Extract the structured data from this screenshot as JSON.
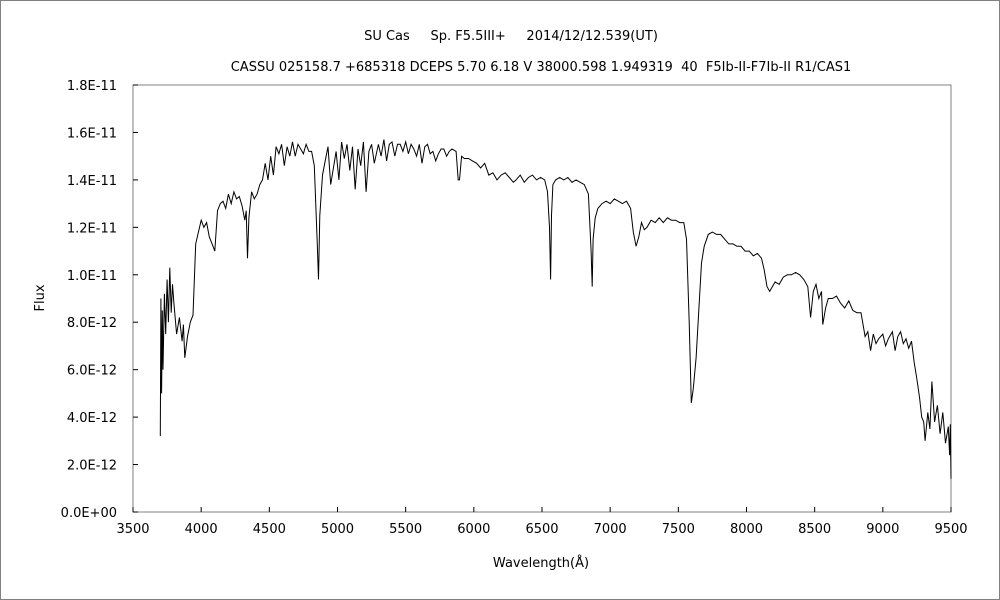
{
  "chart_data": {
    "type": "line",
    "title": "SU Cas     Sp. F5.5III+     2014/12/12.539(UT)",
    "subtitle": "CASSU 025158.7 +685318 DCEPS 5.70 6.18 V 38000.598 1.949319  40  F5Ib-II-F7Ib-II R1/CAS1",
    "xlabel": "Wavelength(Å)",
    "ylabel": "Flux",
    "xlim": [
      3500,
      9500
    ],
    "ylim": [
      0,
      1.8e-11
    ],
    "xticks": [
      3500,
      4000,
      4500,
      5000,
      5500,
      6000,
      6500,
      7000,
      7500,
      8000,
      8500,
      9000,
      9500
    ],
    "xtick_labels": [
      "3500",
      "4000",
      "4500",
      "5000",
      "5500",
      "6000",
      "6500",
      "7000",
      "7500",
      "8000",
      "8500",
      "9000",
      "9500"
    ],
    "yticks": [
      0,
      2e-12,
      4e-12,
      6e-12,
      8e-12,
      1e-11,
      1.2e-11,
      1.4e-11,
      1.6e-11,
      1.8e-11
    ],
    "ytick_labels": [
      "0.0E+00",
      "2.0E-12",
      "4.0E-12",
      "6.0E-12",
      "8.0E-12",
      "1.0E-11",
      "1.2E-11",
      "1.4E-11",
      "1.6E-11",
      "1.8E-11"
    ],
    "grid": false,
    "line_color": "#000000",
    "series": [
      {
        "x": [
          3700,
          3705,
          3710,
          3715,
          3720,
          3730,
          3740,
          3750,
          3760,
          3770,
          3780,
          3790,
          3800,
          3820,
          3840,
          3860,
          3870,
          3880,
          3900,
          3920,
          3940,
          3960,
          3980,
          4000,
          4020,
          4040,
          4060,
          4080,
          4100,
          4120,
          4140,
          4160,
          4180,
          4200,
          4220,
          4240,
          4260,
          4280,
          4300,
          4320,
          4330,
          4340,
          4350,
          4370,
          4390,
          4410,
          4430,
          4450,
          4470,
          4490,
          4510,
          4530,
          4550,
          4570,
          4590,
          4610,
          4630,
          4650,
          4670,
          4690,
          4710,
          4730,
          4750,
          4770,
          4790,
          4810,
          4830,
          4850,
          4861,
          4870,
          4890,
          4910,
          4930,
          4950,
          4970,
          4990,
          5010,
          5030,
          5050,
          5070,
          5090,
          5110,
          5130,
          5150,
          5170,
          5190,
          5210,
          5230,
          5250,
          5270,
          5300,
          5320,
          5340,
          5360,
          5380,
          5400,
          5420,
          5440,
          5460,
          5480,
          5500,
          5520,
          5540,
          5560,
          5580,
          5600,
          5620,
          5640,
          5660,
          5680,
          5700,
          5720,
          5740,
          5760,
          5780,
          5800,
          5820,
          5840,
          5870,
          5885,
          5895,
          5910,
          5930,
          5960,
          5990,
          6020,
          6050,
          6080,
          6110,
          6140,
          6170,
          6200,
          6230,
          6260,
          6290,
          6310,
          6340,
          6370,
          6400,
          6430,
          6460,
          6490,
          6520,
          6540,
          6555,
          6563,
          6570,
          6580,
          6600,
          6630,
          6660,
          6690,
          6720,
          6750,
          6780,
          6810,
          6840,
          6860,
          6868,
          6875,
          6890,
          6910,
          6940,
          6970,
          7000,
          7030,
          7060,
          7090,
          7120,
          7150,
          7170,
          7190,
          7210,
          7230,
          7250,
          7270,
          7300,
          7330,
          7360,
          7390,
          7420,
          7450,
          7480,
          7510,
          7540,
          7560,
          7580,
          7595,
          7610,
          7630,
          7650,
          7670,
          7690,
          7720,
          7750,
          7780,
          7810,
          7840,
          7870,
          7900,
          7930,
          7960,
          7990,
          8020,
          8050,
          8080,
          8110,
          8130,
          8150,
          8170,
          8190,
          8210,
          8240,
          8270,
          8300,
          8330,
          8360,
          8390,
          8420,
          8450,
          8470,
          8490,
          8510,
          8530,
          8550,
          8560,
          8580,
          8600,
          8630,
          8660,
          8690,
          8720,
          8750,
          8780,
          8810,
          8840,
          8870,
          8890,
          8910,
          8930,
          8950,
          8970,
          9000,
          9020,
          9040,
          9070,
          9090,
          9110,
          9130,
          9150,
          9170,
          9190,
          9210,
          9230,
          9250,
          9270,
          9285,
          9300,
          9310,
          9330,
          9345,
          9360,
          9380,
          9400,
          9420,
          9440,
          9460,
          9480,
          9490,
          9495,
          9500
        ],
        "y": [
          3.2e-12,
          9e-12,
          5e-12,
          8.5e-12,
          6e-12,
          9.2e-12,
          7.5e-12,
          9.8e-12,
          8e-12,
          1.03e-11,
          8.4e-12,
          9.6e-12,
          8.8e-12,
          7.5e-12,
          8.2e-12,
          7.2e-12,
          7.9e-12,
          6.5e-12,
          7.4e-12,
          8e-12,
          8.3e-12,
          1.13e-11,
          1.18e-11,
          1.23e-11,
          1.2e-11,
          1.22e-11,
          1.16e-11,
          1.13e-11,
          1.1e-11,
          1.27e-11,
          1.3e-11,
          1.31e-11,
          1.28e-11,
          1.34e-11,
          1.3e-11,
          1.35e-11,
          1.32e-11,
          1.33e-11,
          1.29e-11,
          1.23e-11,
          1.27e-11,
          1.07e-11,
          1.24e-11,
          1.35e-11,
          1.32e-11,
          1.34e-11,
          1.38e-11,
          1.4e-11,
          1.47e-11,
          1.4e-11,
          1.5e-11,
          1.42e-11,
          1.54e-11,
          1.51e-11,
          1.55e-11,
          1.46e-11,
          1.54e-11,
          1.5e-11,
          1.56e-11,
          1.5e-11,
          1.55e-11,
          1.53e-11,
          1.51e-11,
          1.55e-11,
          1.52e-11,
          1.52e-11,
          1.46e-11,
          1.15e-11,
          9.8e-12,
          1.25e-11,
          1.42e-11,
          1.48e-11,
          1.54e-11,
          1.38e-11,
          1.45e-11,
          1.52e-11,
          1.4e-11,
          1.56e-11,
          1.49e-11,
          1.55e-11,
          1.44e-11,
          1.54e-11,
          1.36e-11,
          1.53e-11,
          1.46e-11,
          1.56e-11,
          1.35e-11,
          1.52e-11,
          1.55e-11,
          1.47e-11,
          1.55e-11,
          1.5e-11,
          1.57e-11,
          1.48e-11,
          1.55e-11,
          1.56e-11,
          1.5e-11,
          1.55e-11,
          1.55e-11,
          1.52e-11,
          1.56e-11,
          1.51e-11,
          1.55e-11,
          1.53e-11,
          1.5e-11,
          1.55e-11,
          1.47e-11,
          1.54e-11,
          1.55e-11,
          1.51e-11,
          1.52e-11,
          1.48e-11,
          1.51e-11,
          1.53e-11,
          1.53e-11,
          1.5e-11,
          1.52e-11,
          1.53e-11,
          1.52e-11,
          1.4e-11,
          1.4e-11,
          1.5e-11,
          1.49e-11,
          1.49e-11,
          1.48e-11,
          1.47e-11,
          1.45e-11,
          1.47e-11,
          1.42e-11,
          1.43e-11,
          1.4e-11,
          1.42e-11,
          1.43e-11,
          1.41e-11,
          1.39e-11,
          1.4e-11,
          1.42e-11,
          1.39e-11,
          1.41e-11,
          1.42e-11,
          1.4e-11,
          1.41e-11,
          1.4e-11,
          1.35e-11,
          1.2e-11,
          9.8e-12,
          1.25e-11,
          1.38e-11,
          1.4e-11,
          1.41e-11,
          1.4e-11,
          1.41e-11,
          1.39e-11,
          1.4e-11,
          1.39e-11,
          1.38e-11,
          1.34e-11,
          1.1e-11,
          9.5e-12,
          1.15e-11,
          1.24e-11,
          1.28e-11,
          1.3e-11,
          1.31e-11,
          1.3e-11,
          1.32e-11,
          1.31e-11,
          1.3e-11,
          1.31e-11,
          1.28e-11,
          1.18e-11,
          1.12e-11,
          1.16e-11,
          1.22e-11,
          1.19e-11,
          1.2e-11,
          1.23e-11,
          1.22e-11,
          1.24e-11,
          1.22e-11,
          1.24e-11,
          1.23e-11,
          1.23e-11,
          1.22e-11,
          1.22e-11,
          1.15e-11,
          8e-12,
          4.6e-12,
          5.2e-12,
          6.5e-12,
          8.5e-12,
          1.05e-11,
          1.12e-11,
          1.17e-11,
          1.18e-11,
          1.17e-11,
          1.17e-11,
          1.15e-11,
          1.13e-11,
          1.13e-11,
          1.12e-11,
          1.12e-11,
          1.1e-11,
          1.1e-11,
          1.08e-11,
          1.09e-11,
          1.07e-11,
          1.02e-11,
          9.5e-12,
          9.3e-12,
          9.5e-12,
          9.7e-12,
          9.6e-12,
          9.9e-12,
          1e-11,
          1e-11,
          1.01e-11,
          1e-11,
          9.8e-12,
          9.5e-12,
          8.2e-12,
          9.3e-12,
          9.6e-12,
          9e-12,
          9.3e-12,
          7.9e-12,
          8.6e-12,
          9e-12,
          9e-12,
          9.1e-12,
          8.8e-12,
          8.6e-12,
          8.9e-12,
          8.5e-12,
          8.4e-12,
          8.4e-12,
          7.4e-12,
          7.6e-12,
          6.8e-12,
          7.5e-12,
          7.1e-12,
          7.3e-12,
          7.5e-12,
          7e-12,
          7.3e-12,
          7.6e-12,
          6.8e-12,
          7.4e-12,
          7.6e-12,
          7.1e-12,
          7.3e-12,
          6.9e-12,
          7.2e-12,
          6.3e-12,
          5.6e-12,
          4.8e-12,
          4e-12,
          3.8e-12,
          3e-12,
          4.2e-12,
          3.5e-12,
          5.5e-12,
          3.8e-12,
          4.5e-12,
          3.3e-12,
          4.2e-12,
          2.9e-12,
          3.6e-12,
          2.4e-12,
          3.7e-12,
          1.4e-12
        ]
      }
    ]
  }
}
